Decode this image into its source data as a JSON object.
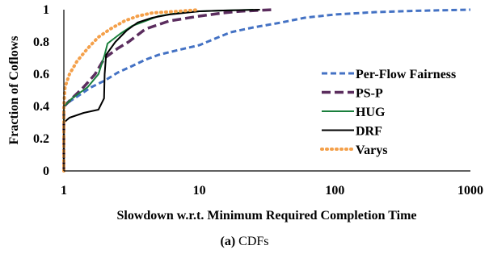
{
  "caption": {
    "tag": "(a)",
    "text": "CDFs"
  },
  "chart_data": {
    "type": "line",
    "xlabel": "Slowdown w.r.t. Minimum Required Completion Time",
    "ylabel": "Fraction of Coflows",
    "x_scale": "log",
    "xlim": [
      1,
      1000
    ],
    "ylim": [
      0,
      1
    ],
    "x_ticks": [
      "1",
      "10",
      "100",
      "1000"
    ],
    "y_ticks": [
      "0",
      "0.2",
      "0.4",
      "0.6",
      "0.8",
      "1"
    ],
    "grid": false,
    "legend_position": "right",
    "series": [
      {
        "name": "Per-Flow Fairness",
        "color": "#4472c4",
        "dash": "dashed",
        "points": [
          [
            1,
            0
          ],
          [
            1,
            0.4
          ],
          [
            1.1,
            0.43
          ],
          [
            1.3,
            0.47
          ],
          [
            1.6,
            0.52
          ],
          [
            2,
            0.56
          ],
          [
            2.5,
            0.61
          ],
          [
            3,
            0.64
          ],
          [
            4,
            0.69
          ],
          [
            5,
            0.72
          ],
          [
            7,
            0.75
          ],
          [
            10,
            0.78
          ],
          [
            13,
            0.82
          ],
          [
            17,
            0.86
          ],
          [
            25,
            0.89
          ],
          [
            40,
            0.92
          ],
          [
            60,
            0.95
          ],
          [
            100,
            0.97
          ],
          [
            200,
            0.985
          ],
          [
            400,
            0.993
          ],
          [
            1000,
            1.0
          ]
        ]
      },
      {
        "name": "PS-P",
        "color": "#5b2d5e",
        "dash": "longdash",
        "points": [
          [
            1,
            0
          ],
          [
            1,
            0.4
          ],
          [
            1.15,
            0.45
          ],
          [
            1.4,
            0.52
          ],
          [
            1.7,
            0.6
          ],
          [
            2,
            0.7
          ],
          [
            2.5,
            0.76
          ],
          [
            3,
            0.8
          ],
          [
            4,
            0.88
          ],
          [
            6,
            0.93
          ],
          [
            10,
            0.96
          ],
          [
            15,
            0.98
          ],
          [
            20,
            0.99
          ],
          [
            35,
            1.0
          ]
        ]
      },
      {
        "name": "HUG",
        "color": "#1a7f3c",
        "dash": "solid",
        "points": [
          [
            1,
            0
          ],
          [
            1,
            0.4
          ],
          [
            1.15,
            0.45
          ],
          [
            1.5,
            0.52
          ],
          [
            1.8,
            0.6
          ],
          [
            2,
            0.72
          ],
          [
            2.1,
            0.79
          ],
          [
            2.6,
            0.85
          ],
          [
            3.2,
            0.9
          ],
          [
            4,
            0.93
          ],
          [
            5,
            0.96
          ],
          [
            7,
            0.98
          ],
          [
            10,
            0.99
          ],
          [
            15,
            0.995
          ],
          [
            25,
            1.0
          ]
        ]
      },
      {
        "name": "DRF",
        "color": "#000000",
        "dash": "solid",
        "points": [
          [
            1,
            0
          ],
          [
            1,
            0.3
          ],
          [
            1.1,
            0.33
          ],
          [
            1.4,
            0.36
          ],
          [
            1.8,
            0.38
          ],
          [
            1.98,
            0.45
          ],
          [
            2,
            0.6
          ],
          [
            2.05,
            0.72
          ],
          [
            2.4,
            0.8
          ],
          [
            2.9,
            0.87
          ],
          [
            3.5,
            0.92
          ],
          [
            4.5,
            0.95
          ],
          [
            6,
            0.97
          ],
          [
            10,
            0.99
          ],
          [
            15,
            0.995
          ],
          [
            28,
            1.0
          ]
        ]
      },
      {
        "name": "Varys",
        "color": "#f4a04a",
        "dash": "dotted",
        "points": [
          [
            1,
            0
          ],
          [
            1,
            0.4
          ],
          [
            1.02,
            0.52
          ],
          [
            1.1,
            0.6
          ],
          [
            1.25,
            0.68
          ],
          [
            1.5,
            0.76
          ],
          [
            1.8,
            0.83
          ],
          [
            2.2,
            0.88
          ],
          [
            2.8,
            0.93
          ],
          [
            3.5,
            0.96
          ],
          [
            4.5,
            0.98
          ],
          [
            7,
            0.99
          ],
          [
            10,
            1.0
          ]
        ]
      }
    ]
  }
}
